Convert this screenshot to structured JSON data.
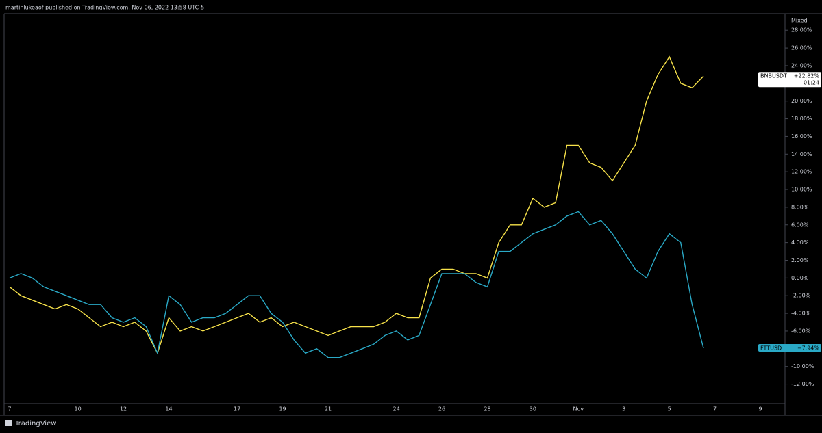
{
  "chart_data": {
    "type": "line",
    "header": "martinlukeaof published on TradingView.com, Nov 06, 2022 13:58 UTC-5",
    "scale_mode": "Mixed",
    "countdown": "01:24",
    "footer": "TradingView",
    "zero_line": true,
    "categories": [
      "7",
      null,
      null,
      null,
      null,
      null,
      "10",
      null,
      null,
      null,
      "12",
      null,
      null,
      null,
      "14",
      null,
      null,
      null,
      null,
      null,
      "17",
      null,
      null,
      null,
      "19",
      null,
      null,
      null,
      "21",
      null,
      null,
      null,
      null,
      null,
      "24",
      null,
      null,
      null,
      "26",
      null,
      null,
      null,
      "28",
      null,
      null,
      null,
      "30",
      null,
      null,
      null,
      "Nov",
      null,
      null,
      null,
      "3",
      null,
      null,
      null,
      "5",
      null,
      null,
      null,
      "7",
      null,
      null,
      null,
      "9"
    ],
    "series": [
      {
        "name": "BNBUSDT",
        "color": "#f7e24a",
        "values": [
          -1,
          -2,
          -2.5,
          -3,
          -3.5,
          -3,
          -3.5,
          -4.5,
          -5.5,
          -5,
          -5.5,
          -5,
          -6,
          -8.5,
          -4.5,
          -6,
          -5.5,
          -6,
          -5.5,
          -5,
          -4.5,
          -4,
          -5,
          -4.5,
          -5.5,
          -5,
          -5.5,
          -6,
          -6.5,
          -6,
          -5.5,
          -5.5,
          -5.5,
          -5,
          -4,
          -4.5,
          -4.5,
          0,
          1,
          1,
          0.5,
          0.5,
          0,
          4,
          6,
          6,
          9,
          8,
          8.5,
          15,
          15,
          13,
          12.5,
          11,
          13,
          15,
          20,
          23,
          25,
          22,
          21.5,
          22.82,
          null,
          null,
          null,
          null,
          null
        ],
        "value_labels": [
          null,
          null,
          null,
          null,
          null,
          null,
          null,
          null,
          null,
          null,
          null,
          null,
          null,
          null,
          null,
          null,
          null,
          null,
          null,
          null,
          null,
          null,
          null,
          null,
          null,
          null,
          null,
          null,
          null,
          null,
          null,
          null,
          null,
          null,
          null,
          null,
          null,
          null,
          null,
          null,
          null,
          null,
          null,
          null,
          null,
          null,
          null,
          null,
          null,
          null,
          null,
          null,
          null,
          null,
          null,
          null,
          null,
          null,
          null,
          null,
          null,
          "+22.82%",
          null,
          null,
          null,
          null,
          null
        ]
      },
      {
        "name": "FTTUSD",
        "color": "#2aa9c6",
        "values": [
          0,
          0.5,
          0,
          -1,
          -1.5,
          -2,
          -2.5,
          -3,
          -3,
          -4.5,
          -5,
          -4.5,
          -5.5,
          -8.5,
          -2,
          -3,
          -5,
          -4.5,
          -4.5,
          -4,
          -3,
          -2,
          -2,
          -4,
          -5,
          -7,
          -8.5,
          -8,
          -9,
          -9,
          -8.5,
          -8,
          -7.5,
          -6.5,
          -6,
          -7,
          -6.5,
          -3,
          0.5,
          0.5,
          0.5,
          -0.5,
          -1,
          3,
          3,
          4,
          5,
          5.5,
          6,
          7,
          7.5,
          6,
          6.5,
          5,
          3,
          1,
          0,
          3,
          5,
          4,
          -3,
          -7.94,
          null,
          null,
          null,
          null,
          null
        ],
        "value_labels": [
          null,
          null,
          null,
          null,
          null,
          null,
          null,
          null,
          null,
          null,
          null,
          null,
          null,
          null,
          null,
          null,
          null,
          null,
          null,
          null,
          null,
          null,
          null,
          null,
          null,
          null,
          null,
          null,
          null,
          null,
          null,
          null,
          null,
          null,
          null,
          null,
          null,
          null,
          null,
          null,
          null,
          null,
          null,
          null,
          null,
          null,
          null,
          null,
          null,
          null,
          null,
          null,
          null,
          null,
          null,
          null,
          null,
          null,
          null,
          null,
          null,
          "−7.94%",
          null,
          null,
          null,
          null,
          null
        ]
      }
    ],
    "ylim": [
      -14.2,
      29.1
    ],
    "yticks": [
      {
        "value": -12,
        "label": "-12.00%"
      },
      {
        "value": -10,
        "label": "-10.00%"
      },
      {
        "value": -8,
        "label": "-8.00%"
      },
      {
        "value": -6,
        "label": "-6.00%"
      },
      {
        "value": -4,
        "label": "-4.00%"
      },
      {
        "value": -2,
        "label": "-2.00%"
      },
      {
        "value": 0,
        "label": "0.00%"
      },
      {
        "value": 2,
        "label": "2.00%"
      },
      {
        "value": 4,
        "label": "4.00%"
      },
      {
        "value": 6,
        "label": "6.00%"
      },
      {
        "value": 8,
        "label": "8.00%"
      },
      {
        "value": 10,
        "label": "10.00%"
      },
      {
        "value": 12,
        "label": "12.00%"
      },
      {
        "value": 14,
        "label": "14.00%"
      },
      {
        "value": 16,
        "label": "16.00%"
      },
      {
        "value": 18,
        "label": "18.00%"
      },
      {
        "value": 20,
        "label": "20.00%"
      },
      {
        "value": 22,
        "label": "22.00%"
      },
      {
        "value": 24,
        "label": "24.00%"
      },
      {
        "value": 26,
        "label": "26.00%"
      },
      {
        "value": 28,
        "label": "28.00%"
      }
    ]
  }
}
